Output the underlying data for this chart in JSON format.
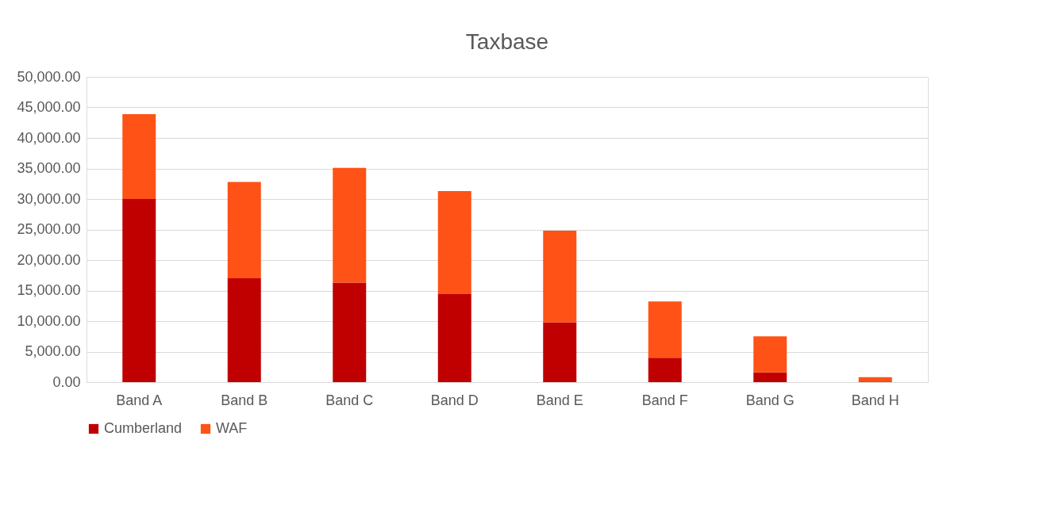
{
  "chart_data": {
    "type": "bar",
    "title": "Taxbase",
    "stacked": true,
    "categories": [
      "Band A",
      "Band B",
      "Band C",
      "Band D",
      "Band E",
      "Band F",
      "Band G",
      "Band H"
    ],
    "series": [
      {
        "name": "Cumberland",
        "color": "#c00000",
        "values": [
          30000,
          17000,
          16300,
          14400,
          9800,
          4000,
          1600,
          100
        ]
      },
      {
        "name": "WAF",
        "color": "#ff5216",
        "values": [
          13900,
          15800,
          18800,
          16900,
          15000,
          9200,
          5900,
          700
        ]
      }
    ],
    "ylim": [
      0,
      50000
    ],
    "yticks": [
      {
        "value": 0,
        "label": "0.00"
      },
      {
        "value": 5000,
        "label": "5,000.00"
      },
      {
        "value": 10000,
        "label": "10,000.00"
      },
      {
        "value": 15000,
        "label": "15,000.00"
      },
      {
        "value": 20000,
        "label": "20,000.00"
      },
      {
        "value": 25000,
        "label": "25,000.00"
      },
      {
        "value": 30000,
        "label": "30,000.00"
      },
      {
        "value": 35000,
        "label": "35,000.00"
      },
      {
        "value": 40000,
        "label": "40,000.00"
      },
      {
        "value": 45000,
        "label": "45,000.00"
      },
      {
        "value": 50000,
        "label": "50,000.00"
      }
    ],
    "grid": "y",
    "legend": "bottom"
  }
}
